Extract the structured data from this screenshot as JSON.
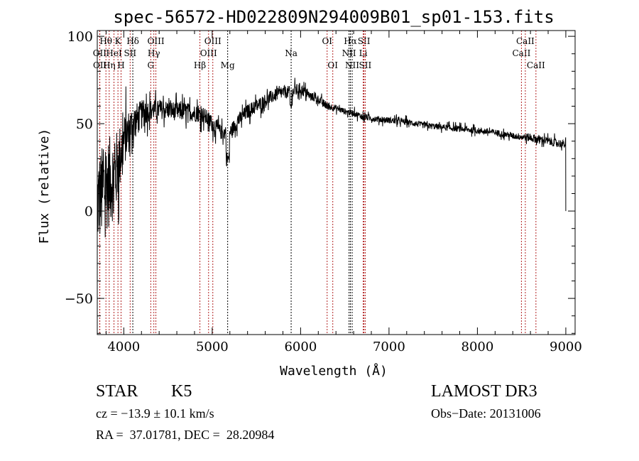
{
  "chart_data": {
    "type": "line",
    "title": "spec-56572-HD022809N294009B01_sp01-153.fits",
    "xlabel": "Wavelength (Å)",
    "ylabel": "Flux (relative)",
    "xlim": [
      3700,
      9105
    ],
    "ylim": [
      -70.7,
      103.3
    ],
    "x_ticks": [
      4000,
      5000,
      6000,
      7000,
      8000,
      9000
    ],
    "x_tick_labels": [
      "4000",
      "5000",
      "6000",
      "7000",
      "8000",
      "9000"
    ],
    "y_ticks": [
      -50,
      0,
      50,
      100
    ],
    "y_tick_labels": [
      "−50",
      "0",
      "50",
      "100"
    ],
    "grid": false,
    "series": [
      {
        "name": "flux",
        "continuum_wavelength": [
          3700,
          3800,
          3900,
          4000,
          4100,
          4200,
          4300,
          4400,
          4500,
          4600,
          4700,
          4800,
          4900,
          5000,
          5100,
          5200,
          5300,
          5400,
          5500,
          5600,
          5700,
          5800,
          5900,
          6000,
          6100,
          6200,
          6300,
          6400,
          6500,
          6600,
          6700,
          6800,
          7000,
          7200,
          7400,
          7600,
          7800,
          8000,
          8200,
          8400,
          8600,
          8800,
          9000
        ],
        "continuum_flux": [
          5,
          15,
          20,
          40,
          50,
          55,
          58,
          58,
          58,
          57,
          57,
          56,
          55,
          50,
          45,
          45,
          52,
          57,
          60,
          63,
          66,
          68,
          68,
          70,
          66,
          64,
          60,
          59,
          57,
          56,
          54,
          53,
          52,
          51,
          49,
          48,
          47,
          46,
          45,
          43,
          42,
          40,
          38
        ],
        "noise_amplitude": [
          45,
          45,
          40,
          25,
          18,
          14,
          10,
          9,
          9,
          9,
          9,
          8,
          8,
          8,
          7,
          7,
          7,
          7,
          7,
          7,
          6,
          6,
          6,
          6,
          4,
          4,
          4,
          3,
          3,
          3,
          3,
          3,
          3,
          3,
          3,
          3,
          3,
          3,
          3,
          3,
          4,
          4,
          4
        ],
        "color": "#000000"
      }
    ],
    "spectral_lines": [
      {
        "label": "Hθ",
        "wave": 3798,
        "row": 1,
        "color": "#b22222"
      },
      {
        "label": "OII",
        "wave": 3727,
        "row": 2,
        "color": "#b22222"
      },
      {
        "label": "OII",
        "wave": 3729,
        "row": 3,
        "color": "#b22222"
      },
      {
        "label": "HeI",
        "wave": 3889,
        "row": 2,
        "color": "#b22222"
      },
      {
        "label": "Hη",
        "wave": 3835,
        "row": 3,
        "color": "#b22222"
      },
      {
        "label": "K",
        "wave": 3934,
        "row": 1,
        "color": "#b22222"
      },
      {
        "label": "H",
        "wave": 3969,
        "row": 3,
        "color": "#b22222"
      },
      {
        "label": "SII",
        "wave": 4072,
        "row": 2,
        "color": "#b22222"
      },
      {
        "label": "Hδ",
        "wave": 4102,
        "row": 1,
        "color": "#000000"
      },
      {
        "label": "G",
        "wave": 4305,
        "row": 3,
        "color": "#b22222"
      },
      {
        "label": "Hγ",
        "wave": 4340,
        "row": 2,
        "color": "#b22222"
      },
      {
        "label": "OIII",
        "wave": 4363,
        "row": 1,
        "color": "#b22222"
      },
      {
        "label": "Hβ",
        "wave": 4861,
        "row": 3,
        "color": "#b22222"
      },
      {
        "label": "OIII",
        "wave": 4959,
        "row": 2,
        "color": "#b22222"
      },
      {
        "label": "OIII",
        "wave": 5007,
        "row": 1,
        "color": "#b22222"
      },
      {
        "label": "Mg",
        "wave": 5175,
        "row": 3,
        "color": "#000000"
      },
      {
        "label": "Na",
        "wave": 5893,
        "row": 2,
        "color": "#000000"
      },
      {
        "label": "OI",
        "wave": 6300,
        "row": 1,
        "color": "#b22222"
      },
      {
        "label": "OI",
        "wave": 6364,
        "row": 3,
        "color": "#b22222"
      },
      {
        "label": "NII",
        "wave": 6548,
        "row": 2,
        "color": "#000000"
      },
      {
        "label": "Hα",
        "wave": 6563,
        "row": 1,
        "color": "#000000"
      },
      {
        "label": "NII",
        "wave": 6583,
        "row": 3,
        "color": "#000000"
      },
      {
        "label": "Li",
        "wave": 6708,
        "row": 2,
        "color": "#b22222"
      },
      {
        "label": "SII",
        "wave": 6717,
        "row": 1,
        "color": "#b22222"
      },
      {
        "label": "SII",
        "wave": 6731,
        "row": 3,
        "color": "#b22222"
      },
      {
        "label": "CaII",
        "wave": 8498,
        "row": 2,
        "color": "#b22222"
      },
      {
        "label": "CaII",
        "wave": 8542,
        "row": 1,
        "color": "#b22222"
      },
      {
        "label": "CaII",
        "wave": 8662,
        "row": 3,
        "color": "#b22222"
      }
    ]
  },
  "info": {
    "object_class": "STAR",
    "subclass": "K5",
    "survey": "LAMOST DR3",
    "redshift": "cz = −13.9 ± 10.1 km/s",
    "obs_date": "Obs−Date: 20131006",
    "coords": "RA =  37.01781, DEC =  28.20984"
  }
}
